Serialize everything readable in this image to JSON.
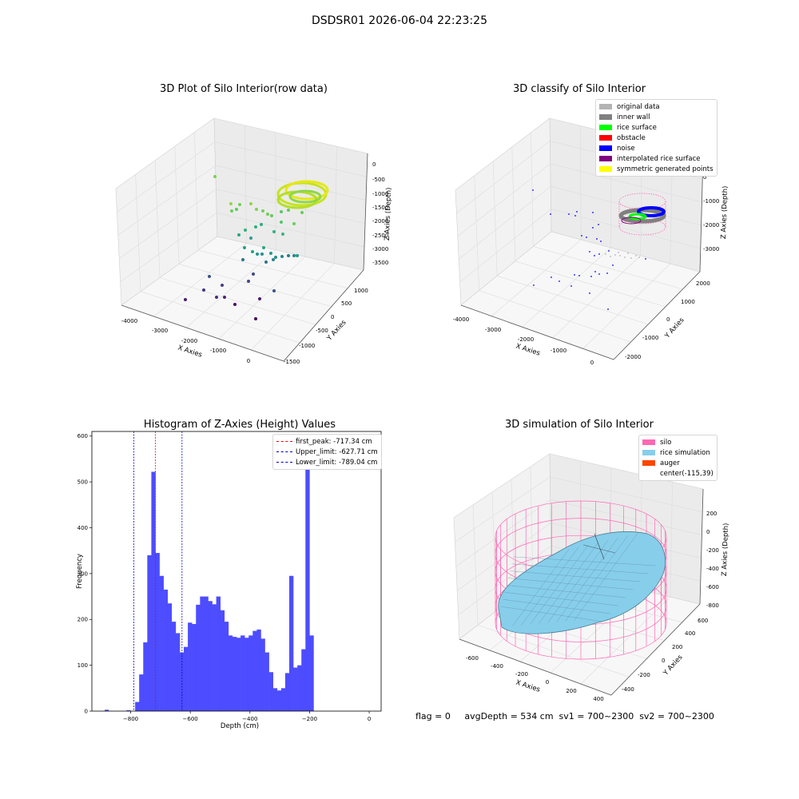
{
  "suptitle": "DSDSR01 2026-06-04 22:23:25",
  "footer": "flag = 0     avgDepth = 534 cm  sv1 = 700~2300  sv2 = 700~2300",
  "colors": {
    "original_data": "#b3b3b3",
    "inner_wall": "#808080",
    "rice_surface": "#00ff00",
    "obstacle": "#ff0000",
    "noise": "#0000ff",
    "interpolated": "#800080",
    "symmetric": "#ffff00",
    "silo": "#ff69b4",
    "rice_sim": "#87ceeb",
    "auger": "#ff4500",
    "hist_bar": "#4d4dff"
  },
  "plots": {
    "raw": {
      "title": "3D Plot of Silo Interior(row data)",
      "xlabel": "X Axies",
      "ylabel": "Y Axies",
      "zlabel": "Z Axies (Depth)",
      "xticks": [
        "-4000",
        "-3000",
        "-2000",
        "-1000",
        "0"
      ],
      "yticks": [
        "1000",
        "500",
        "0",
        "-500",
        "-1000",
        "-1500"
      ],
      "zticks": [
        "0",
        "-500",
        "-1000",
        "-1500",
        "-2000",
        "-2500",
        "-3000",
        "-3500"
      ]
    },
    "classify": {
      "title": "3D classify of Silo Interior",
      "xlabel": "X Axies",
      "ylabel": "Y Axies",
      "zlabel": "Z Axies (Depth)",
      "xticks": [
        "-4000",
        "-3000",
        "-2000",
        "-1000",
        "0"
      ],
      "yticks": [
        "2000",
        "1000",
        "0",
        "-1000",
        "-2000"
      ],
      "zticks": [
        "0",
        "-1000",
        "-2000",
        "-3000"
      ],
      "legend": [
        "original data",
        "inner wall",
        "rice surface",
        "obstacle",
        "noise",
        "interpolated rice surface",
        "symmetric generated points"
      ]
    },
    "simulation": {
      "title": "3D simulation of Silo Interior",
      "xlabel": "X Axies",
      "ylabel": "Y Axies",
      "zlabel": "Z Axies (Depth)",
      "xticks": [
        "-600",
        "-400",
        "-200",
        "0",
        "200",
        "400"
      ],
      "yticks": [
        "600",
        "400",
        "200",
        "0",
        "-200",
        "-400"
      ],
      "zticks": [
        "200",
        "0",
        "-200",
        "-400",
        "-600",
        "-800"
      ],
      "legend": [
        "silo",
        "rice simulation",
        "auger",
        "center(-115,39)"
      ]
    }
  },
  "chart_data": [
    {
      "type": "histogram",
      "title": "Histogram of Z-Axies (Height) Values",
      "xlabel": "Depth (cm)",
      "ylabel": "Frequency",
      "xlim": [
        -930,
        40
      ],
      "ylim": [
        0,
        610
      ],
      "xticks": [
        -800,
        -600,
        -400,
        -200,
        0
      ],
      "yticks": [
        0,
        100,
        200,
        300,
        400,
        500,
        600
      ],
      "bin_start": -785,
      "bin_width": 13.6,
      "values": [
        20,
        80,
        150,
        340,
        522,
        345,
        295,
        265,
        235,
        195,
        170,
        128,
        140,
        193,
        190,
        232,
        250,
        250,
        240,
        233,
        250,
        220,
        195,
        165,
        162,
        160,
        165,
        160,
        165,
        175,
        178,
        158,
        128,
        85,
        50,
        45,
        50,
        83,
        295,
        95,
        100,
        135,
        575,
        165
      ],
      "stray_bins": [
        {
          "x": -887,
          "value": 3
        },
        {
          "x": -814,
          "value": 2
        }
      ],
      "vlines": [
        {
          "label": "first_peak: -717.34 cm",
          "x": -717.34,
          "color": "#ff0000"
        },
        {
          "label": "Upper_limit: -627.71 cm",
          "x": -627.71,
          "color": "#0000cd"
        },
        {
          "label": "Lower_limit: -789.04 cm",
          "x": -789.04,
          "color": "#0000cd"
        }
      ]
    }
  ]
}
